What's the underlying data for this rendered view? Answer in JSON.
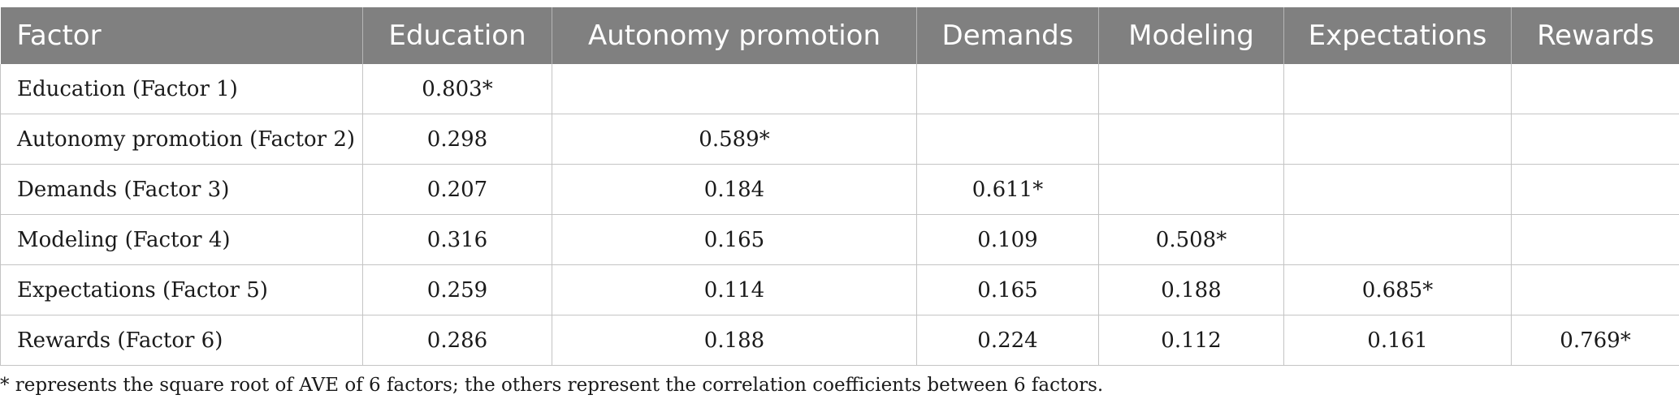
{
  "table": {
    "headers": [
      "Factor",
      "Education",
      "Autonomy promotion",
      "Demands",
      "Modeling",
      "Expectations",
      "Rewards"
    ],
    "rows": [
      [
        "Education (Factor 1)",
        "0.803*",
        "",
        "",
        "",
        "",
        ""
      ],
      [
        "Autonomy promotion (Factor 2)",
        "0.298",
        "0.589*",
        "",
        "",
        "",
        ""
      ],
      [
        "Demands (Factor 3)",
        "0.207",
        "0.184",
        "0.611*",
        "",
        "",
        ""
      ],
      [
        "Modeling (Factor 4)",
        "0.316",
        "0.165",
        "0.109",
        "0.508*",
        "",
        ""
      ],
      [
        "Expectations (Factor 5)",
        "0.259",
        "0.114",
        "0.165",
        "0.188",
        "0.685*",
        ""
      ],
      [
        "Rewards (Factor 6)",
        "0.286",
        "0.188",
        "0.224",
        "0.112",
        "0.161",
        "0.769*"
      ]
    ]
  },
  "footnote": "* represents the square root of AVE of 6 factors; the others represent the correlation coefficients between 6 factors.",
  "colors": {
    "header_bg": "#808080",
    "header_text": "#ffffff",
    "grid_line": "#c4c4c4"
  }
}
